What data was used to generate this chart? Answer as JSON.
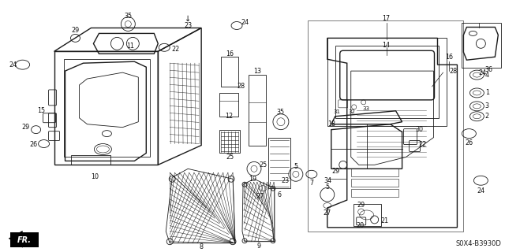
{
  "background_color": "#ffffff",
  "diagram_code": "S0X4-B3930D",
  "fig_width": 6.4,
  "fig_height": 3.2,
  "dpi": 100,
  "line_color": "#1a1a1a",
  "label_color": "#111111",
  "label_fontsize": 5.8,
  "lw_main": 1.0,
  "lw_thin": 0.6,
  "lw_detail": 0.4
}
